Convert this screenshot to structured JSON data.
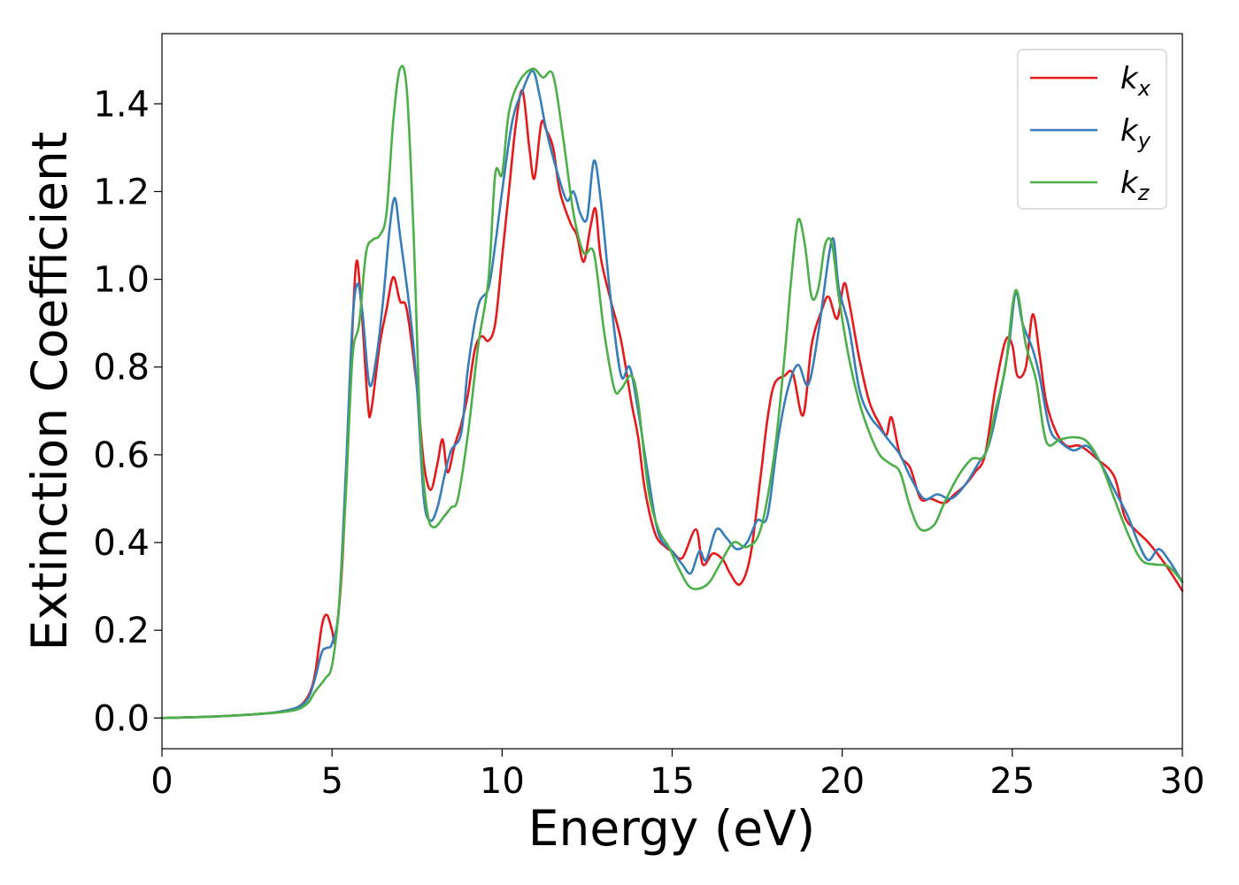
{
  "chart_data": {
    "type": "line",
    "title": "",
    "xlabel": "Energy (eV)",
    "ylabel": "Extinction Coefficient",
    "xlim": [
      0,
      30
    ],
    "ylim": [
      -0.07,
      1.56
    ],
    "xticks": [
      0,
      5,
      10,
      15,
      20,
      25,
      30
    ],
    "xtick_labels": [
      "0",
      "5",
      "10",
      "15",
      "20",
      "25",
      "30"
    ],
    "yticks": [
      0.0,
      0.2,
      0.4,
      0.6,
      0.8,
      1.0,
      1.2,
      1.4
    ],
    "ytick_labels": [
      "0.0",
      "0.2",
      "0.4",
      "0.6",
      "0.8",
      "1.0",
      "1.2",
      "1.4"
    ],
    "grid": false,
    "legend_position": "top-right",
    "series": [
      {
        "name": "k_x",
        "legend_base": "k",
        "legend_sub": "x",
        "color": "#e41a1c",
        "points": [
          [
            0,
            0.0
          ],
          [
            1,
            0.002
          ],
          [
            2,
            0.005
          ],
          [
            3,
            0.01
          ],
          [
            3.5,
            0.015
          ],
          [
            4.0,
            0.025
          ],
          [
            4.3,
            0.05
          ],
          [
            4.5,
            0.1
          ],
          [
            4.7,
            0.21
          ],
          [
            4.85,
            0.235
          ],
          [
            5.0,
            0.2
          ],
          [
            5.1,
            0.18
          ],
          [
            5.3,
            0.35
          ],
          [
            5.5,
            0.7
          ],
          [
            5.7,
            1.03
          ],
          [
            5.85,
            0.95
          ],
          [
            6.05,
            0.72
          ],
          [
            6.15,
            0.7
          ],
          [
            6.4,
            0.85
          ],
          [
            6.6,
            0.93
          ],
          [
            6.8,
            1.005
          ],
          [
            7.0,
            0.95
          ],
          [
            7.2,
            0.93
          ],
          [
            7.5,
            0.75
          ],
          [
            7.7,
            0.58
          ],
          [
            7.9,
            0.52
          ],
          [
            8.1,
            0.58
          ],
          [
            8.25,
            0.635
          ],
          [
            8.4,
            0.56
          ],
          [
            8.6,
            0.62
          ],
          [
            8.8,
            0.67
          ],
          [
            9.0,
            0.74
          ],
          [
            9.2,
            0.84
          ],
          [
            9.4,
            0.87
          ],
          [
            9.6,
            0.86
          ],
          [
            9.8,
            0.9
          ],
          [
            10.0,
            1.05
          ],
          [
            10.2,
            1.2
          ],
          [
            10.4,
            1.35
          ],
          [
            10.6,
            1.43
          ],
          [
            10.8,
            1.3
          ],
          [
            10.95,
            1.23
          ],
          [
            11.15,
            1.355
          ],
          [
            11.3,
            1.34
          ],
          [
            11.5,
            1.3
          ],
          [
            11.7,
            1.2
          ],
          [
            12.0,
            1.13
          ],
          [
            12.2,
            1.1
          ],
          [
            12.4,
            1.04
          ],
          [
            12.6,
            1.12
          ],
          [
            12.75,
            1.16
          ],
          [
            12.9,
            1.05
          ],
          [
            13.2,
            0.95
          ],
          [
            13.5,
            0.86
          ],
          [
            13.8,
            0.72
          ],
          [
            14.0,
            0.64
          ],
          [
            14.2,
            0.52
          ],
          [
            14.5,
            0.42
          ],
          [
            14.8,
            0.39
          ],
          [
            15.0,
            0.38
          ],
          [
            15.3,
            0.365
          ],
          [
            15.7,
            0.43
          ],
          [
            15.9,
            0.35
          ],
          [
            16.2,
            0.375
          ],
          [
            16.5,
            0.36
          ],
          [
            16.7,
            0.33
          ],
          [
            17.0,
            0.305
          ],
          [
            17.3,
            0.37
          ],
          [
            17.6,
            0.55
          ],
          [
            17.8,
            0.68
          ],
          [
            18.0,
            0.76
          ],
          [
            18.3,
            0.78
          ],
          [
            18.55,
            0.785
          ],
          [
            18.85,
            0.69
          ],
          [
            19.1,
            0.85
          ],
          [
            19.4,
            0.93
          ],
          [
            19.6,
            0.96
          ],
          [
            19.85,
            0.91
          ],
          [
            20.05,
            0.99
          ],
          [
            20.2,
            0.95
          ],
          [
            20.5,
            0.82
          ],
          [
            20.8,
            0.72
          ],
          [
            21.1,
            0.67
          ],
          [
            21.3,
            0.645
          ],
          [
            21.45,
            0.685
          ],
          [
            21.7,
            0.6
          ],
          [
            22.0,
            0.57
          ],
          [
            22.3,
            0.5
          ],
          [
            22.6,
            0.5
          ],
          [
            23.0,
            0.49
          ],
          [
            23.3,
            0.51
          ],
          [
            23.6,
            0.53
          ],
          [
            23.9,
            0.56
          ],
          [
            24.2,
            0.6
          ],
          [
            24.5,
            0.75
          ],
          [
            24.8,
            0.86
          ],
          [
            25.0,
            0.85
          ],
          [
            25.15,
            0.78
          ],
          [
            25.4,
            0.8
          ],
          [
            25.6,
            0.92
          ],
          [
            25.8,
            0.83
          ],
          [
            26.0,
            0.72
          ],
          [
            26.3,
            0.65
          ],
          [
            26.6,
            0.62
          ],
          [
            27.0,
            0.62
          ],
          [
            27.5,
            0.59
          ],
          [
            28.0,
            0.55
          ],
          [
            28.3,
            0.46
          ],
          [
            28.6,
            0.43
          ],
          [
            29.0,
            0.4
          ],
          [
            29.5,
            0.35
          ],
          [
            30.0,
            0.29
          ]
        ]
      },
      {
        "name": "k_y",
        "legend_base": "k",
        "legend_sub": "y",
        "color": "#377eb8",
        "points": [
          [
            0,
            0.0
          ],
          [
            1,
            0.002
          ],
          [
            2,
            0.005
          ],
          [
            3,
            0.01
          ],
          [
            3.5,
            0.015
          ],
          [
            4.0,
            0.025
          ],
          [
            4.3,
            0.045
          ],
          [
            4.5,
            0.09
          ],
          [
            4.7,
            0.15
          ],
          [
            4.85,
            0.16
          ],
          [
            5.0,
            0.17
          ],
          [
            5.2,
            0.25
          ],
          [
            5.4,
            0.55
          ],
          [
            5.6,
            0.9
          ],
          [
            5.75,
            0.99
          ],
          [
            5.9,
            0.92
          ],
          [
            6.1,
            0.76
          ],
          [
            6.3,
            0.82
          ],
          [
            6.5,
            0.95
          ],
          [
            6.7,
            1.12
          ],
          [
            6.85,
            1.185
          ],
          [
            7.0,
            1.1
          ],
          [
            7.3,
            0.92
          ],
          [
            7.5,
            0.75
          ],
          [
            7.7,
            0.5
          ],
          [
            7.9,
            0.45
          ],
          [
            8.1,
            0.48
          ],
          [
            8.3,
            0.55
          ],
          [
            8.5,
            0.61
          ],
          [
            8.8,
            0.65
          ],
          [
            9.0,
            0.8
          ],
          [
            9.3,
            0.94
          ],
          [
            9.6,
            0.98
          ],
          [
            9.8,
            1.08
          ],
          [
            10.0,
            1.2
          ],
          [
            10.3,
            1.36
          ],
          [
            10.6,
            1.43
          ],
          [
            10.9,
            1.475
          ],
          [
            11.1,
            1.42
          ],
          [
            11.3,
            1.34
          ],
          [
            11.6,
            1.25
          ],
          [
            11.9,
            1.18
          ],
          [
            12.1,
            1.2
          ],
          [
            12.3,
            1.15
          ],
          [
            12.5,
            1.14
          ],
          [
            12.7,
            1.27
          ],
          [
            12.9,
            1.18
          ],
          [
            13.2,
            0.95
          ],
          [
            13.5,
            0.78
          ],
          [
            13.75,
            0.8
          ],
          [
            14.0,
            0.7
          ],
          [
            14.3,
            0.55
          ],
          [
            14.6,
            0.42
          ],
          [
            15.0,
            0.38
          ],
          [
            15.3,
            0.35
          ],
          [
            15.55,
            0.33
          ],
          [
            15.8,
            0.38
          ],
          [
            16.0,
            0.36
          ],
          [
            16.3,
            0.43
          ],
          [
            16.6,
            0.41
          ],
          [
            16.9,
            0.385
          ],
          [
            17.2,
            0.4
          ],
          [
            17.5,
            0.45
          ],
          [
            17.8,
            0.46
          ],
          [
            18.1,
            0.63
          ],
          [
            18.4,
            0.75
          ],
          [
            18.7,
            0.805
          ],
          [
            19.0,
            0.76
          ],
          [
            19.3,
            0.88
          ],
          [
            19.6,
            1.05
          ],
          [
            19.75,
            1.09
          ],
          [
            19.9,
            0.98
          ],
          [
            20.2,
            0.89
          ],
          [
            20.5,
            0.75
          ],
          [
            20.8,
            0.69
          ],
          [
            21.1,
            0.66
          ],
          [
            21.4,
            0.63
          ],
          [
            21.7,
            0.6
          ],
          [
            22.0,
            0.55
          ],
          [
            22.4,
            0.5
          ],
          [
            22.8,
            0.51
          ],
          [
            23.2,
            0.5
          ],
          [
            23.6,
            0.53
          ],
          [
            24.0,
            0.58
          ],
          [
            24.3,
            0.62
          ],
          [
            24.6,
            0.72
          ],
          [
            24.9,
            0.85
          ],
          [
            25.1,
            0.97
          ],
          [
            25.3,
            0.9
          ],
          [
            25.6,
            0.84
          ],
          [
            25.8,
            0.78
          ],
          [
            26.1,
            0.66
          ],
          [
            26.4,
            0.63
          ],
          [
            26.8,
            0.61
          ],
          [
            27.2,
            0.62
          ],
          [
            27.6,
            0.58
          ],
          [
            28.0,
            0.52
          ],
          [
            28.4,
            0.46
          ],
          [
            28.7,
            0.4
          ],
          [
            29.0,
            0.36
          ],
          [
            29.3,
            0.385
          ],
          [
            29.6,
            0.36
          ],
          [
            30.0,
            0.31
          ]
        ]
      },
      {
        "name": "k_z",
        "legend_base": "k",
        "legend_sub": "z",
        "color": "#4daf4a",
        "points": [
          [
            0,
            0.0
          ],
          [
            1,
            0.002
          ],
          [
            2,
            0.005
          ],
          [
            3,
            0.01
          ],
          [
            3.5,
            0.013
          ],
          [
            4.0,
            0.02
          ],
          [
            4.3,
            0.035
          ],
          [
            4.5,
            0.06
          ],
          [
            4.8,
            0.09
          ],
          [
            5.0,
            0.12
          ],
          [
            5.2,
            0.25
          ],
          [
            5.4,
            0.5
          ],
          [
            5.6,
            0.82
          ],
          [
            5.8,
            0.9
          ],
          [
            6.0,
            1.06
          ],
          [
            6.2,
            1.09
          ],
          [
            6.4,
            1.1
          ],
          [
            6.6,
            1.15
          ],
          [
            6.8,
            1.36
          ],
          [
            7.0,
            1.48
          ],
          [
            7.2,
            1.43
          ],
          [
            7.4,
            1.1
          ],
          [
            7.6,
            0.65
          ],
          [
            7.8,
            0.47
          ],
          [
            8.0,
            0.435
          ],
          [
            8.3,
            0.46
          ],
          [
            8.5,
            0.48
          ],
          [
            8.7,
            0.5
          ],
          [
            9.0,
            0.65
          ],
          [
            9.3,
            0.85
          ],
          [
            9.6,
            1.0
          ],
          [
            9.8,
            1.24
          ],
          [
            10.0,
            1.24
          ],
          [
            10.2,
            1.38
          ],
          [
            10.5,
            1.45
          ],
          [
            10.9,
            1.48
          ],
          [
            11.2,
            1.46
          ],
          [
            11.5,
            1.465
          ],
          [
            11.8,
            1.32
          ],
          [
            12.1,
            1.15
          ],
          [
            12.4,
            1.06
          ],
          [
            12.7,
            1.06
          ],
          [
            13.0,
            0.88
          ],
          [
            13.3,
            0.75
          ],
          [
            13.5,
            0.75
          ],
          [
            13.8,
            0.78
          ],
          [
            14.0,
            0.72
          ],
          [
            14.3,
            0.52
          ],
          [
            14.6,
            0.43
          ],
          [
            14.9,
            0.39
          ],
          [
            15.2,
            0.34
          ],
          [
            15.5,
            0.3
          ],
          [
            15.8,
            0.295
          ],
          [
            16.1,
            0.31
          ],
          [
            16.4,
            0.35
          ],
          [
            16.8,
            0.4
          ],
          [
            17.2,
            0.39
          ],
          [
            17.6,
            0.43
          ],
          [
            18.0,
            0.6
          ],
          [
            18.3,
            0.82
          ],
          [
            18.5,
            1.0
          ],
          [
            18.7,
            1.135
          ],
          [
            18.9,
            1.08
          ],
          [
            19.1,
            0.96
          ],
          [
            19.3,
            0.98
          ],
          [
            19.5,
            1.08
          ],
          [
            19.7,
            1.08
          ],
          [
            19.9,
            0.96
          ],
          [
            20.2,
            0.82
          ],
          [
            20.5,
            0.72
          ],
          [
            20.8,
            0.65
          ],
          [
            21.1,
            0.6
          ],
          [
            21.4,
            0.58
          ],
          [
            21.7,
            0.56
          ],
          [
            22.0,
            0.48
          ],
          [
            22.3,
            0.43
          ],
          [
            22.7,
            0.44
          ],
          [
            23.0,
            0.49
          ],
          [
            23.4,
            0.55
          ],
          [
            23.8,
            0.59
          ],
          [
            24.2,
            0.6
          ],
          [
            24.5,
            0.7
          ],
          [
            24.8,
            0.8
          ],
          [
            25.1,
            0.975
          ],
          [
            25.4,
            0.85
          ],
          [
            25.7,
            0.77
          ],
          [
            26.0,
            0.63
          ],
          [
            26.4,
            0.635
          ],
          [
            26.8,
            0.64
          ],
          [
            27.2,
            0.63
          ],
          [
            27.6,
            0.58
          ],
          [
            28.0,
            0.5
          ],
          [
            28.4,
            0.42
          ],
          [
            28.8,
            0.36
          ],
          [
            29.2,
            0.35
          ],
          [
            29.6,
            0.345
          ],
          [
            30.0,
            0.31
          ]
        ]
      }
    ]
  }
}
